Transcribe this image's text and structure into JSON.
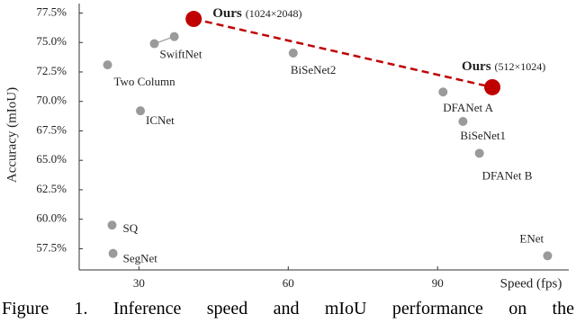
{
  "chart_data": {
    "type": "scatter",
    "xlabel": "Speed (fps)",
    "ylabel": "Accuracy (mIoU)",
    "xlim": [
      18,
      116
    ],
    "xticks": [
      30,
      60,
      90
    ],
    "ylim": [
      55.7,
      78.3
    ],
    "yticks": [
      {
        "value": 57.5,
        "label": "57.5%"
      },
      {
        "value": 60,
        "label": "60.0%"
      },
      {
        "value": 62.5,
        "label": "62.5%"
      },
      {
        "value": 65,
        "label": "65.0%"
      },
      {
        "value": 67.5,
        "label": "67.5%"
      },
      {
        "value": 70,
        "label": "70.0%"
      },
      {
        "value": 72.5,
        "label": "72.5%"
      },
      {
        "value": 75,
        "label": "75.0%"
      },
      {
        "value": 77.5,
        "label": "77.5%"
      }
    ],
    "grid": false,
    "series": [
      {
        "name": "Ours",
        "color": "#c00000",
        "line": "dashed",
        "marker": "large",
        "x": [
          41,
          101
        ],
        "values": [
          77.0,
          71.2
        ],
        "point_labels": [
          "(1024×2048)",
          "(512×1024)"
        ]
      },
      {
        "name": "SwiftNet",
        "color": "#9a9a9a",
        "line": "solid",
        "marker": "small",
        "x": [
          33.1,
          37.1
        ],
        "values": [
          74.9,
          75.5
        ]
      },
      {
        "color": "#9a9a9a",
        "marker": "small",
        "x": [
          23.7,
          61,
          30.3,
          91.1,
          95.1,
          98.4,
          24.6,
          24.8,
          112.1
        ],
        "values": [
          73.1,
          74.1,
          69.2,
          70.8,
          68.3,
          65.6,
          59.5,
          57.1,
          56.9
        ],
        "point_labels": [
          "Two Column",
          "BiSeNet2",
          "ICNet",
          "DFANet A",
          "BiSeNet1",
          "DFANet B",
          "SQ",
          "SegNet",
          "ENet"
        ]
      }
    ]
  },
  "caption": "Figure 1. Inference speed and mIoU performance on the"
}
